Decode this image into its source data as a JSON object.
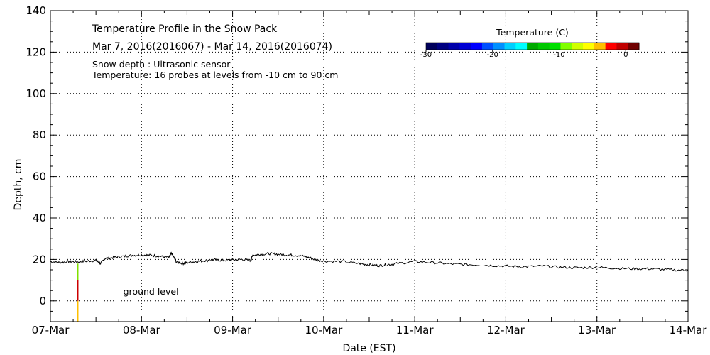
{
  "chart_data": {
    "type": "line",
    "title": "Temperature Profile in the Snow Pack",
    "subtitle": "Mar  7, 2016(2016067) - Mar 14, 2016(2016074)",
    "notes": [
      "Snow depth : Ultrasonic sensor",
      "Temperature: 16 probes at levels from -10 cm to 90 cm"
    ],
    "xlabel": "Date (EST)",
    "ylabel": "Depth, cm",
    "xlim": [
      0,
      7
    ],
    "ylim": [
      -10,
      140
    ],
    "x_ticks": [
      {
        "v": 0,
        "label": "07-Mar"
      },
      {
        "v": 1,
        "label": "08-Mar"
      },
      {
        "v": 2,
        "label": "09-Mar"
      },
      {
        "v": 3,
        "label": "10-Mar"
      },
      {
        "v": 4,
        "label": "11-Mar"
      },
      {
        "v": 5,
        "label": "12-Mar"
      },
      {
        "v": 6,
        "label": "13-Mar"
      },
      {
        "v": 7,
        "label": "14-Mar"
      }
    ],
    "y_ticks": [
      0,
      20,
      40,
      60,
      80,
      100,
      120,
      140
    ],
    "grid": true,
    "annotation": {
      "text": "ground level",
      "x": 0.8,
      "y": 3
    },
    "colorbar": {
      "title": "Temperature (C)",
      "min": -30,
      "max": 2,
      "ticks": [
        {
          "v": -30,
          "label": "-30"
        },
        {
          "v": -20,
          "label": "-20"
        },
        {
          "v": -10,
          "label": "-10"
        },
        {
          "v": 0,
          "label": "0"
        }
      ],
      "colors": [
        "#00005a",
        "#000080",
        "#0000aa",
        "#0000d4",
        "#0000ff",
        "#0050ff",
        "#0090ff",
        "#00d0ff",
        "#00ffff",
        "#00aa00",
        "#00c800",
        "#00e000",
        "#80ff00",
        "#d0ff00",
        "#ffff00",
        "#ffc000",
        "#ff0000",
        "#c00000",
        "#700000"
      ]
    },
    "probe_strip": {
      "x": 0.3,
      "segments": [
        {
          "y0": 18,
          "y1": 10,
          "color": "#80e000"
        },
        {
          "y0": 10,
          "y1": 0,
          "color": "#cc0000"
        },
        {
          "y0": 0,
          "y1": -10,
          "color": "#ffc000"
        }
      ]
    },
    "series": [
      {
        "name": "Snow depth",
        "x": [
          0,
          0.1,
          0.2,
          0.3,
          0.4,
          0.5,
          0.55,
          0.6,
          0.7,
          0.8,
          0.9,
          1.0,
          1.1,
          1.2,
          1.3,
          1.33,
          1.38,
          1.45,
          1.5,
          1.6,
          1.7,
          1.8,
          1.9,
          2.0,
          2.1,
          2.2,
          2.22,
          2.3,
          2.4,
          2.5,
          2.6,
          2.7,
          2.8,
          2.9,
          3.0,
          3.2,
          3.4,
          3.5,
          3.6,
          3.7,
          3.8,
          4.0,
          4.2,
          4.4,
          4.6,
          4.8,
          5.0,
          5.2,
          5.4,
          5.6,
          5.8,
          6.0,
          6.2,
          6.4,
          6.6,
          6.8,
          7.0
        ],
        "values": [
          19,
          18.5,
          19,
          18.8,
          19.2,
          19.5,
          18,
          20.5,
          21,
          21.5,
          22,
          22.2,
          22,
          21.5,
          21,
          23,
          19,
          18,
          18.5,
          19,
          19.5,
          19.8,
          19.5,
          19.8,
          20,
          19.5,
          22,
          22.5,
          22.8,
          22.5,
          22.2,
          22,
          21.5,
          20,
          19.2,
          19,
          18,
          17.5,
          17,
          17.5,
          18,
          19,
          18.5,
          17.8,
          17.5,
          17.2,
          16.8,
          16.5,
          16.8,
          16.2,
          16,
          16.2,
          15.8,
          15.5,
          15.5,
          15,
          14.8
        ]
      }
    ]
  }
}
